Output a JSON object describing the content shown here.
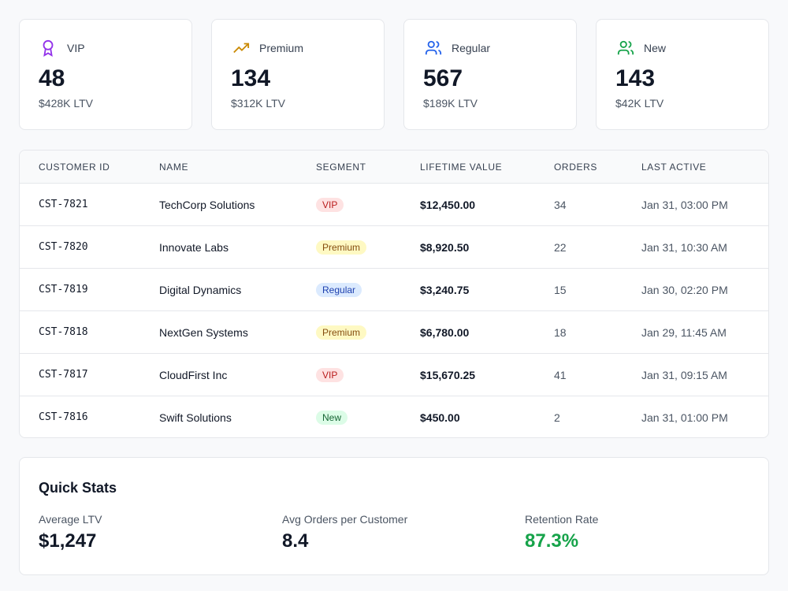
{
  "cards": [
    {
      "label": "VIP",
      "count": 48,
      "ltv": "$428K LTV"
    },
    {
      "label": "Premium",
      "count": 134,
      "ltv": "$312K LTV"
    },
    {
      "label": "Regular",
      "count": 567,
      "ltv": "$189K LTV"
    },
    {
      "label": "New",
      "count": 143,
      "ltv": "$42K LTV"
    }
  ],
  "table": {
    "headers": [
      "CUSTOMER ID",
      "NAME",
      "SEGMENT",
      "LIFETIME VALUE",
      "ORDERS",
      "LAST ACTIVE"
    ],
    "rows": [
      [
        "CST-7821",
        "TechCorp Solutions",
        "VIP",
        "$12,450.00",
        34,
        "Jan 31, 03:00 PM"
      ],
      [
        "CST-7820",
        "Innovate Labs",
        "Premium",
        "$8,920.50",
        22,
        "Jan 31, 10:30 AM"
      ],
      [
        "CST-7819",
        "Digital Dynamics",
        "Regular",
        "$3,240.75",
        15,
        "Jan 30, 02:20 PM"
      ],
      [
        "CST-7818",
        "NextGen Systems",
        "Premium",
        "$6,780.00",
        18,
        "Jan 29, 11:45 AM"
      ],
      [
        "CST-7817",
        "CloudFirst Inc",
        "VIP",
        "$15,670.25",
        41,
        "Jan 31, 09:15 AM"
      ],
      [
        "CST-7816",
        "Swift Solutions",
        "New",
        "$450.00",
        2,
        "Jan 31, 01:00 PM"
      ]
    ]
  },
  "quick_stats": {
    "title": "Quick Stats",
    "items": [
      {
        "label": "Average LTV",
        "value": "$1,247"
      },
      {
        "label": "Avg Orders per Customer",
        "value": 8.4
      },
      {
        "label": "Retention Rate",
        "value": "87.3%"
      }
    ]
  }
}
